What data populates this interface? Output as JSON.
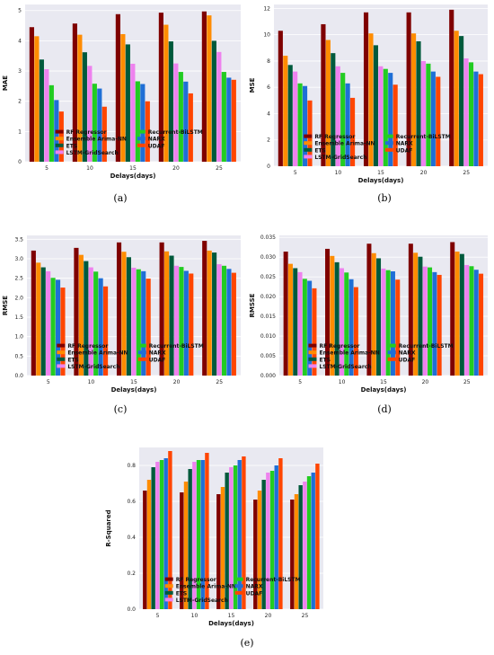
{
  "colors": [
    "#7f0000",
    "#ff8c00",
    "#005a3c",
    "#ee82ee",
    "#22cc22",
    "#1f6fd6",
    "#ff4500"
  ],
  "legend_order": [
    0,
    4,
    1,
    5,
    2,
    6,
    3
  ],
  "chart_data": [
    {
      "type": "bar",
      "caption": "(a)",
      "xlabel": "Delays(days)",
      "ylabel": "MAE",
      "categories": [
        "5",
        "10",
        "15",
        "20",
        "25"
      ],
      "ylim": [
        0,
        5.2
      ],
      "yticks": [
        0,
        1,
        2,
        3,
        4,
        5
      ],
      "yticklabels": [
        "0",
        "1",
        "2",
        "3",
        "4",
        "5"
      ],
      "series": [
        {
          "name": "RF Regressor",
          "values": [
            4.45,
            4.57,
            4.88,
            4.93,
            4.97
          ]
        },
        {
          "name": "Ensemble Arima-NN",
          "values": [
            4.15,
            4.2,
            4.22,
            4.53,
            4.84
          ]
        },
        {
          "name": "ETS",
          "values": [
            3.38,
            3.62,
            3.88,
            3.98,
            4.0
          ]
        },
        {
          "name": "LSTM-GridSearch",
          "values": [
            3.06,
            3.17,
            3.24,
            3.25,
            3.63
          ]
        },
        {
          "name": "Recurrent-BiLSTM",
          "values": [
            2.53,
            2.58,
            2.66,
            2.97,
            2.97
          ]
        },
        {
          "name": "NARX",
          "values": [
            2.04,
            2.42,
            2.57,
            2.65,
            2.78
          ]
        },
        {
          "name": "UDAF",
          "values": [
            1.66,
            1.82,
            2.0,
            2.26,
            2.71
          ]
        }
      ]
    },
    {
      "type": "bar",
      "caption": "(b)",
      "xlabel": "Delays(days)",
      "ylabel": "MSE",
      "categories": [
        "5",
        "10",
        "15",
        "20",
        "25"
      ],
      "ylim": [
        0,
        12.3
      ],
      "yticks": [
        0,
        2,
        4,
        6,
        8,
        10,
        12
      ],
      "yticklabels": [
        "0",
        "2",
        "4",
        "6",
        "8",
        "10",
        "12"
      ],
      "series": [
        {
          "name": "RF Regressor",
          "values": [
            10.3,
            10.8,
            11.7,
            11.7,
            11.9
          ]
        },
        {
          "name": "Ensemble Arima-NN",
          "values": [
            8.4,
            9.6,
            10.1,
            10.1,
            10.3
          ]
        },
        {
          "name": "ETS",
          "values": [
            7.7,
            8.6,
            9.2,
            9.5,
            9.9
          ]
        },
        {
          "name": "LSTM-GridSearch",
          "values": [
            7.2,
            7.6,
            7.6,
            8.0,
            8.2
          ]
        },
        {
          "name": "Recurrent-BiLSTM",
          "values": [
            6.3,
            7.1,
            7.4,
            7.8,
            7.9
          ]
        },
        {
          "name": "NARX",
          "values": [
            6.1,
            6.3,
            7.1,
            7.2,
            7.2
          ]
        },
        {
          "name": "UDAF",
          "values": [
            5.0,
            5.2,
            6.2,
            6.8,
            7.0
          ]
        }
      ]
    },
    {
      "type": "bar",
      "caption": "(c)",
      "xlabel": "Delays(days)",
      "ylabel": "RMSE",
      "categories": [
        "5",
        "10",
        "15",
        "20",
        "25"
      ],
      "ylim": [
        0,
        3.6
      ],
      "yticks": [
        0,
        0.5,
        1.0,
        1.5,
        2.0,
        2.5,
        3.0,
        3.5
      ],
      "yticklabels": [
        "0.0",
        "0.5",
        "1.0",
        "1.5",
        "2.0",
        "2.5",
        "3.0",
        "3.5"
      ],
      "series": [
        {
          "name": "RF Regressor",
          "values": [
            3.21,
            3.28,
            3.42,
            3.42,
            3.46
          ]
        },
        {
          "name": "Ensemble Arima-NN",
          "values": [
            2.9,
            3.1,
            3.18,
            3.19,
            3.21
          ]
        },
        {
          "name": "ETS",
          "values": [
            2.78,
            2.94,
            3.04,
            3.08,
            3.16
          ]
        },
        {
          "name": "LSTM-GridSearch",
          "values": [
            2.68,
            2.78,
            2.77,
            2.82,
            2.86
          ]
        },
        {
          "name": "Recurrent-BiLSTM",
          "values": [
            2.51,
            2.67,
            2.73,
            2.79,
            2.82
          ]
        },
        {
          "name": "NARX",
          "values": [
            2.46,
            2.5,
            2.68,
            2.69,
            2.74
          ]
        },
        {
          "name": "UDAF",
          "values": [
            2.26,
            2.29,
            2.49,
            2.62,
            2.64
          ]
        }
      ]
    },
    {
      "type": "bar",
      "caption": "(d)",
      "xlabel": "Delays(days)",
      "ylabel": "RMSSE",
      "categories": [
        "5",
        "10",
        "15",
        "20",
        "25"
      ],
      "ylim": [
        0,
        0.0355
      ],
      "yticks": [
        0,
        0.005,
        0.01,
        0.015,
        0.02,
        0.025,
        0.03,
        0.035
      ],
      "yticklabels": [
        "0.000",
        "0.005",
        "0.010",
        "0.015",
        "0.020",
        "0.025",
        "0.030",
        "0.035"
      ],
      "series": [
        {
          "name": "RF Regressor",
          "values": [
            0.0314,
            0.0321,
            0.0334,
            0.0334,
            0.0338
          ]
        },
        {
          "name": "Ensemble Arima-NN",
          "values": [
            0.0283,
            0.0303,
            0.031,
            0.0311,
            0.0314
          ]
        },
        {
          "name": "ETS",
          "values": [
            0.0272,
            0.0287,
            0.0297,
            0.0301,
            0.0308
          ]
        },
        {
          "name": "LSTM-GridSearch",
          "values": [
            0.0262,
            0.0272,
            0.0271,
            0.0276,
            0.028
          ]
        },
        {
          "name": "Recurrent-BiLSTM",
          "values": [
            0.0245,
            0.0261,
            0.0267,
            0.0274,
            0.0277
          ]
        },
        {
          "name": "NARX",
          "values": [
            0.024,
            0.0244,
            0.0264,
            0.0262,
            0.0268
          ]
        },
        {
          "name": "UDAF",
          "values": [
            0.0221,
            0.0224,
            0.0243,
            0.0255,
            0.0258
          ]
        }
      ]
    },
    {
      "type": "bar",
      "caption": "(e)",
      "xlabel": "Delays(days)",
      "ylabel": "R-Squared",
      "categories": [
        "5",
        "10",
        "15",
        "20",
        "25"
      ],
      "ylim": [
        0,
        0.9
      ],
      "yticks": [
        0,
        0.2,
        0.4,
        0.6,
        0.8
      ],
      "yticklabels": [
        "0.0",
        "0.2",
        "0.4",
        "0.6",
        "0.8"
      ],
      "series": [
        {
          "name": "RF Regressor",
          "values": [
            0.66,
            0.65,
            0.64,
            0.61,
            0.61
          ]
        },
        {
          "name": "Ensemble Arima-NN",
          "values": [
            0.72,
            0.71,
            0.68,
            0.66,
            0.64
          ]
        },
        {
          "name": "ETS",
          "values": [
            0.79,
            0.78,
            0.76,
            0.72,
            0.69
          ]
        },
        {
          "name": "LSTM-GridSearch",
          "values": [
            0.82,
            0.82,
            0.79,
            0.76,
            0.71
          ]
        },
        {
          "name": "Recurrent-BiLSTM",
          "values": [
            0.83,
            0.83,
            0.8,
            0.77,
            0.74
          ]
        },
        {
          "name": "NARX",
          "values": [
            0.84,
            0.83,
            0.83,
            0.8,
            0.76
          ]
        },
        {
          "name": "UDAF",
          "values": [
            0.88,
            0.87,
            0.85,
            0.84,
            0.81
          ]
        }
      ]
    }
  ]
}
